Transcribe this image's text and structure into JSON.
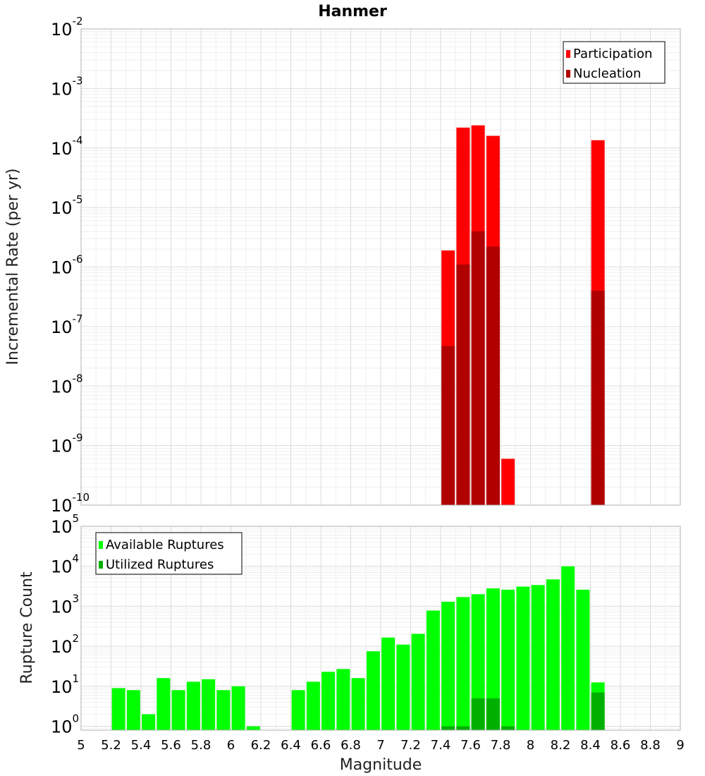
{
  "chart_data": [
    {
      "type": "bar",
      "title": "Hanmer",
      "xlabel": "",
      "ylabel": "Incremental Rate (per yr)",
      "y_scale": "log",
      "xlim": [
        5,
        9
      ],
      "ylim": [
        1e-10,
        0.01
      ],
      "grid": true,
      "legend_position": "top-right",
      "series": [
        {
          "name": "Participation",
          "color": "#ff0000",
          "x": [
            7.45,
            7.55,
            7.65,
            7.75,
            7.85,
            8.45
          ],
          "values": [
            1.9e-06,
            0.00022,
            0.00024,
            0.00016,
            6e-10,
            0.000135
          ]
        },
        {
          "name": "Nucleation",
          "color": "#b00000",
          "x": [
            7.45,
            7.55,
            7.65,
            7.75,
            8.45
          ],
          "values": [
            4.7e-08,
            1.1e-06,
            4e-06,
            2.2e-06,
            4e-07
          ]
        }
      ]
    },
    {
      "type": "bar",
      "title": "",
      "xlabel": "Magnitude",
      "ylabel": "Rupture Count",
      "y_scale": "log",
      "xlim": [
        5,
        9
      ],
      "ylim": [
        0.8,
        100000
      ],
      "grid": true,
      "legend_position": "top-left",
      "x_ticks": [
        "5",
        "5.2",
        "5.4",
        "5.6",
        "5.8",
        "6",
        "6.2",
        "6.4",
        "6.6",
        "6.8",
        "7",
        "7.2",
        "7.4",
        "7.6",
        "7.8",
        "8",
        "8.2",
        "8.4",
        "8.6",
        "8.8",
        "9"
      ],
      "series": [
        {
          "name": "Available Ruptures",
          "color": "#00ff00",
          "x": [
            5.25,
            5.35,
            5.45,
            5.55,
            5.65,
            5.75,
            5.85,
            5.95,
            6.05,
            6.15,
            6.45,
            6.55,
            6.65,
            6.75,
            6.85,
            6.95,
            7.05,
            7.15,
            7.25,
            7.35,
            7.45,
            7.55,
            7.65,
            7.75,
            7.85,
            7.95,
            8.05,
            8.15,
            8.25,
            8.35,
            8.45
          ],
          "values": [
            9,
            8,
            2,
            16,
            8,
            13,
            15,
            8,
            10,
            1,
            8,
            13,
            23,
            27,
            16,
            75,
            165,
            110,
            205,
            780,
            1300,
            1700,
            2000,
            2800,
            2600,
            3100,
            3400,
            4700,
            10000,
            2600,
            12.5
          ]
        },
        {
          "name": "Utilized Ruptures",
          "color": "#00b000",
          "x": [
            7.45,
            7.55,
            7.65,
            7.75,
            7.85,
            8.45
          ],
          "values": [
            1,
            1,
            5,
            5,
            1,
            7
          ]
        }
      ]
    }
  ]
}
